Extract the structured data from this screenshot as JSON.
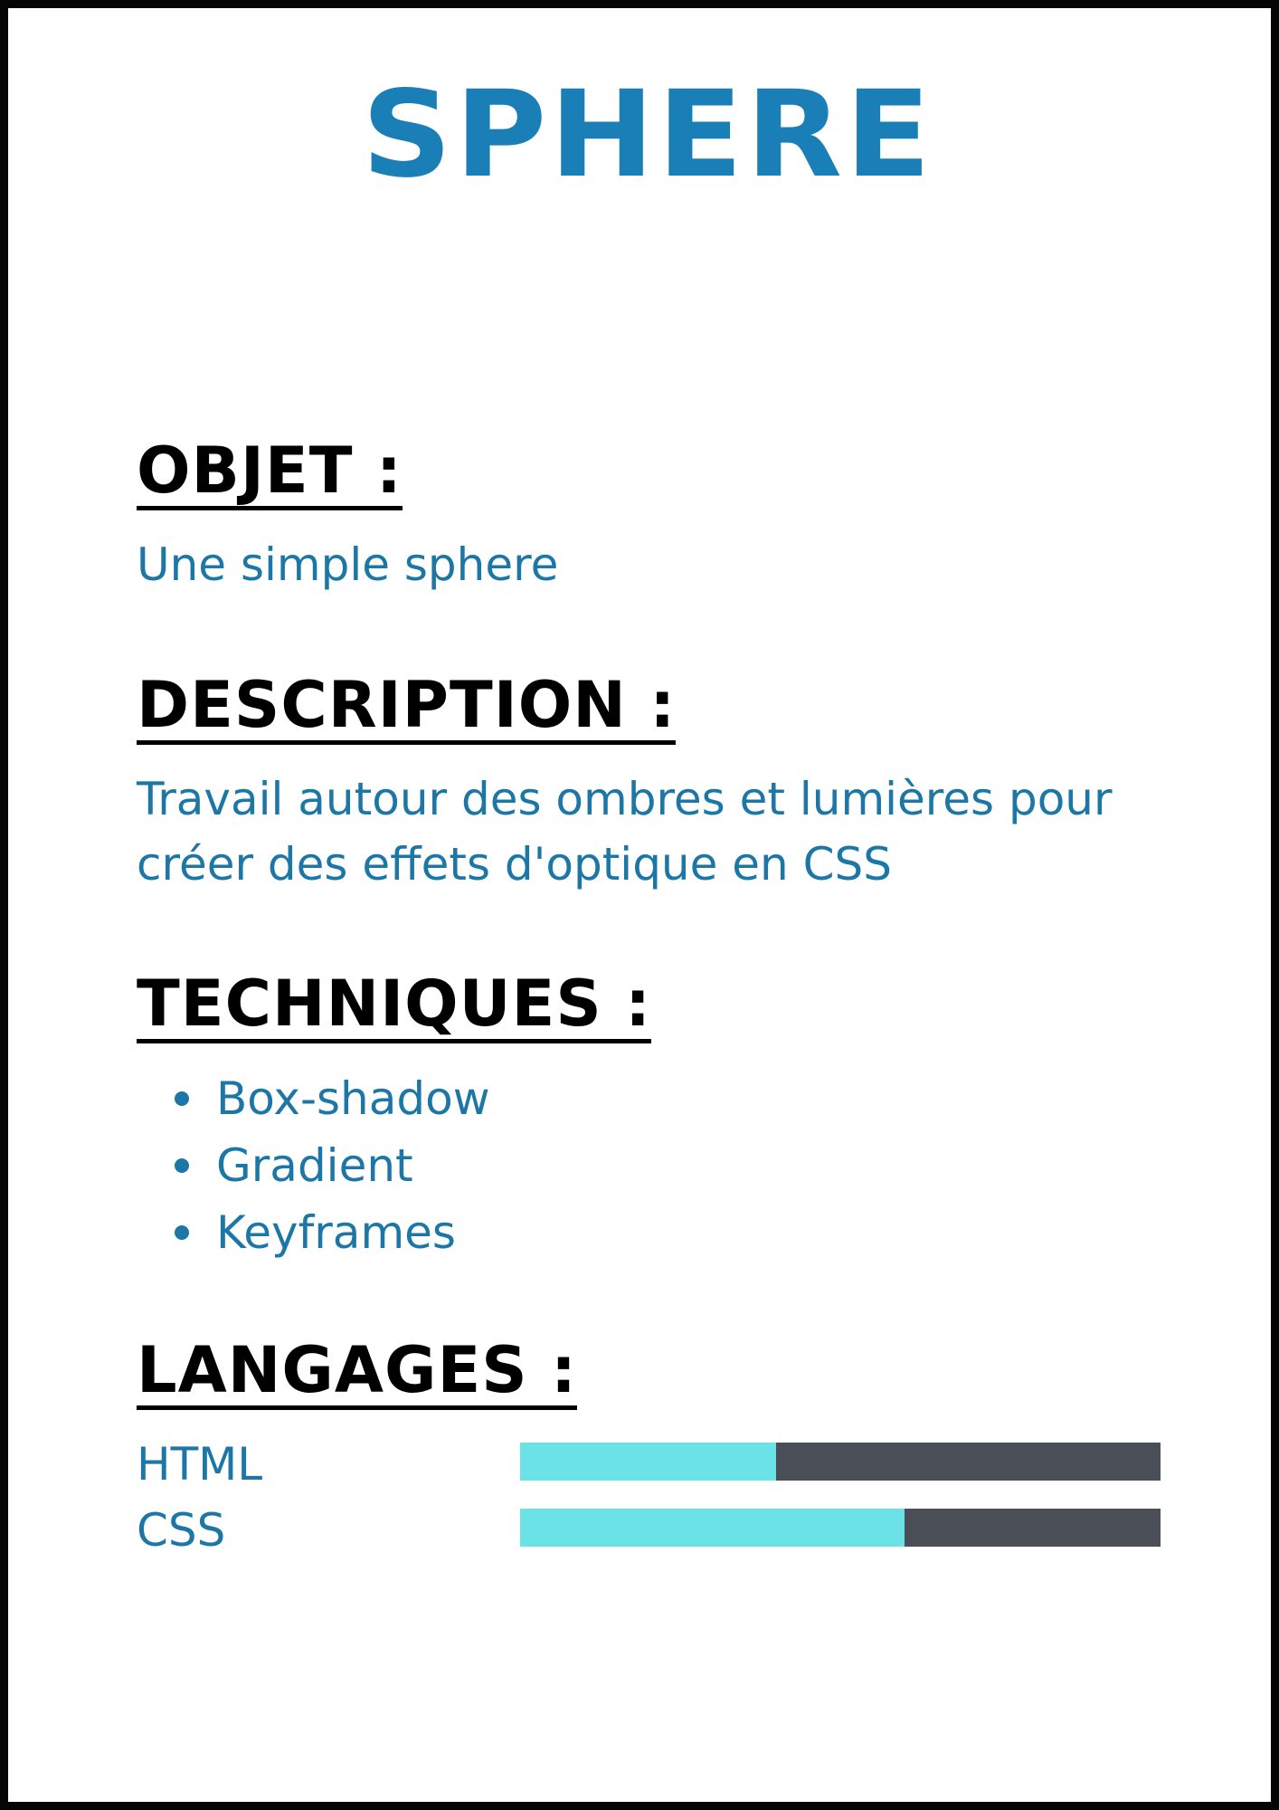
{
  "title": "SPHERE",
  "sections": {
    "objet": {
      "heading": "OBJET :",
      "text": "Une simple sphere"
    },
    "description": {
      "heading": "DESCRIPTION :",
      "text": "Travail autour des ombres et lumières pour créer des effets d'optique en CSS"
    },
    "techniques": {
      "heading": "TECHNIQUES :",
      "items": [
        "Box-shadow",
        "Gradient",
        "Keyframes"
      ]
    },
    "langages": {
      "heading": "LANGAGES :",
      "items": [
        {
          "label": "HTML",
          "level": 0.4
        },
        {
          "label": "CSS",
          "level": 0.6
        }
      ]
    }
  },
  "colors": {
    "title": "#1a7fb6",
    "text": "#1c77a7",
    "heading": "#000000",
    "bar_fill": "#6be3e6",
    "bar_track": "#4a4f57"
  }
}
